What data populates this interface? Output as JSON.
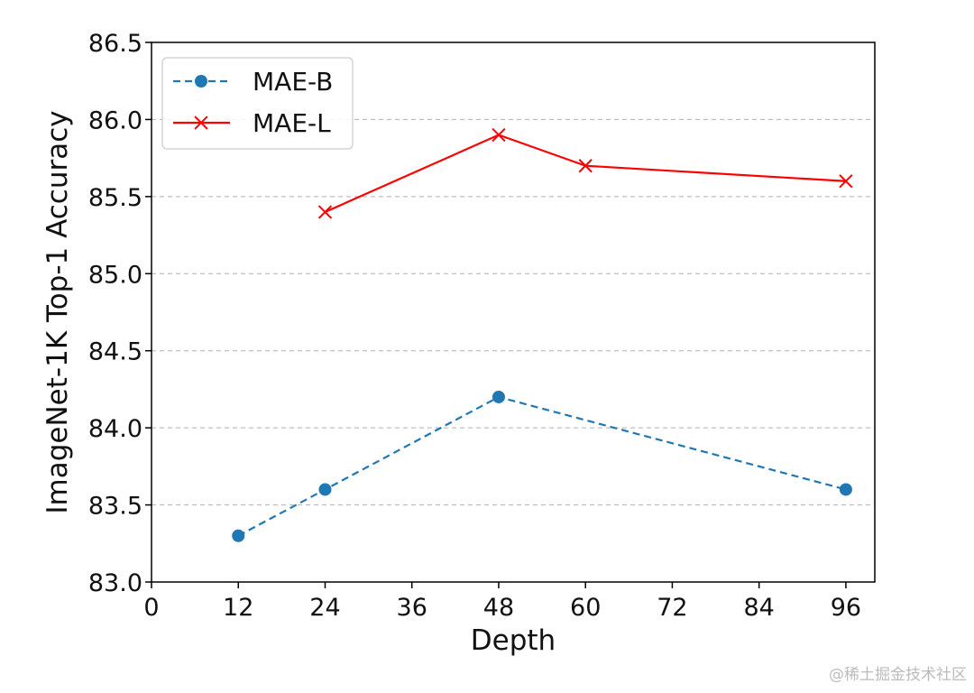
{
  "chart_data": {
    "type": "line",
    "xlabel": "Depth",
    "ylabel": "ImageNet-1K Top-1 Accuracy",
    "xlim": [
      0,
      100
    ],
    "ylim": [
      83.0,
      86.5
    ],
    "xticks": [
      "0",
      "12",
      "24",
      "36",
      "48",
      "60",
      "72",
      "84",
      "96"
    ],
    "yticks": [
      "83.0",
      "83.5",
      "84.0",
      "84.5",
      "85.0",
      "85.5",
      "86.0",
      "86.5"
    ],
    "grid": "horizontal dashed",
    "legend_position": "top-left",
    "series": [
      {
        "name": "MAE-B",
        "color": "#1f77b4",
        "linestyle": "dashed",
        "marker": "circle",
        "x": [
          12,
          24,
          48,
          96
        ],
        "y": [
          83.3,
          83.6,
          84.2,
          83.6
        ]
      },
      {
        "name": "MAE-L",
        "color": "#ff0000",
        "linestyle": "solid",
        "marker": "x",
        "x": [
          24,
          48,
          60,
          96
        ],
        "y": [
          85.4,
          85.9,
          85.7,
          85.6
        ]
      }
    ]
  },
  "watermark": "@稀土掘金技术社区"
}
